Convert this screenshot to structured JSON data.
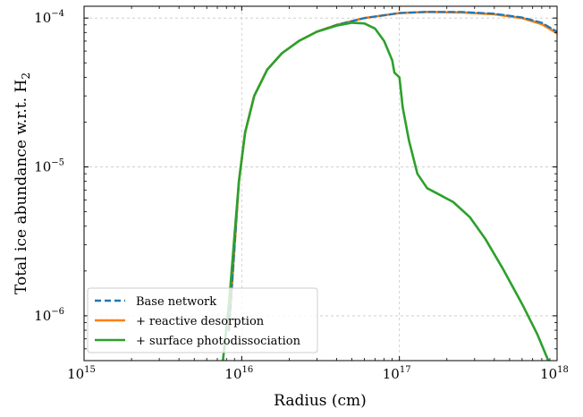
{
  "chart_data": {
    "type": "line",
    "title": "",
    "xlabel": "Radius (cm)",
    "ylabel": {
      "main": "Total ice abundance w.r.t. H",
      "subscript": "2"
    },
    "xscale": "log",
    "yscale": "log",
    "xlim": [
      1000000000000000.0,
      1e+18
    ],
    "ylim": [
      5e-07,
      0.00012
    ],
    "x_ticks": [
      {
        "value": 1000000000000000.0,
        "base": "10",
        "exp": "15"
      },
      {
        "value": 1e+16,
        "base": "10",
        "exp": "16"
      },
      {
        "value": 1e+17,
        "base": "10",
        "exp": "17"
      },
      {
        "value": 1e+18,
        "base": "10",
        "exp": "18"
      }
    ],
    "y_ticks": [
      {
        "value": 1e-06,
        "base": "10",
        "exp": "−6"
      },
      {
        "value": 1e-05,
        "base": "10",
        "exp": "−5"
      },
      {
        "value": 0.0001,
        "base": "10",
        "exp": "−4"
      }
    ],
    "grid": true,
    "legend_position": "bottom-left",
    "series": [
      {
        "name": "Base network",
        "color": "#1f77b4",
        "linestyle": "dashed",
        "points": [
          [
            8300000000000000.0,
            8e-07
          ],
          [
            8800000000000000.0,
            2e-06
          ],
          [
            9600000000000000.0,
            8e-06
          ],
          [
            1.05e+16,
            1.7e-05
          ],
          [
            1.2e+16,
            3e-05
          ],
          [
            1.45e+16,
            4.5e-05
          ],
          [
            1.8e+16,
            5.8e-05
          ],
          [
            2.3e+16,
            7e-05
          ],
          [
            3e+16,
            8.1e-05
          ],
          [
            4e+16,
            9e-05
          ],
          [
            6e+16,
            0.0001
          ],
          [
            1e+17,
            0.000108
          ],
          [
            1.5e+17,
            0.00011
          ],
          [
            2.5e+17,
            0.00011
          ],
          [
            4e+17,
            0.000107
          ],
          [
            6e+17,
            0.000101
          ],
          [
            8e+17,
            9.3e-05
          ],
          [
            1e+18,
            8.1e-05
          ]
        ]
      },
      {
        "name": "+ reactive desorption",
        "color": "#ff7f0e",
        "linestyle": "solid",
        "points": [
          [
            8300000000000000.0,
            8e-07
          ],
          [
            8800000000000000.0,
            2e-06
          ],
          [
            9600000000000000.0,
            8e-06
          ],
          [
            1.05e+16,
            1.7e-05
          ],
          [
            1.2e+16,
            3e-05
          ],
          [
            1.45e+16,
            4.5e-05
          ],
          [
            1.8e+16,
            5.8e-05
          ],
          [
            2.3e+16,
            7e-05
          ],
          [
            3e+16,
            8.1e-05
          ],
          [
            4e+16,
            9e-05
          ],
          [
            6e+16,
            0.0001
          ],
          [
            1e+17,
            0.000108
          ],
          [
            1.5e+17,
            0.00011
          ],
          [
            2.5e+17,
            0.000109
          ],
          [
            4e+17,
            0.000106
          ],
          [
            6e+17,
            0.0001
          ],
          [
            8e+17,
            9.1e-05
          ],
          [
            1e+18,
            7.9e-05
          ]
        ]
      },
      {
        "name": "+ surface photodissociation",
        "color": "#2ca02c",
        "linestyle": "solid",
        "points": [
          [
            7600000000000000.0,
            5e-07
          ],
          [
            8300000000000000.0,
            1.2e-06
          ],
          [
            9000000000000000.0,
            3.5e-06
          ],
          [
            9600000000000000.0,
            8e-06
          ],
          [
            1.05e+16,
            1.7e-05
          ],
          [
            1.2e+16,
            3e-05
          ],
          [
            1.45e+16,
            4.5e-05
          ],
          [
            1.8e+16,
            5.8e-05
          ],
          [
            2.3e+16,
            7e-05
          ],
          [
            3e+16,
            8.1e-05
          ],
          [
            4e+16,
            8.9e-05
          ],
          [
            5e+16,
            9.3e-05
          ],
          [
            6e+16,
            9.2e-05
          ],
          [
            7e+16,
            8.5e-05
          ],
          [
            8e+16,
            7e-05
          ],
          [
            9e+16,
            5.2e-05
          ],
          [
            9.3e+16,
            4.3e-05
          ],
          [
            1e+17,
            4e-05
          ],
          [
            1.05e+17,
            2.5e-05
          ],
          [
            1.15e+17,
            1.5e-05
          ],
          [
            1.3e+17,
            9e-06
          ],
          [
            1.5e+17,
            7.2e-06
          ],
          [
            1.8e+17,
            6.5e-06
          ],
          [
            2.2e+17,
            5.8e-06
          ],
          [
            2.8e+17,
            4.6e-06
          ],
          [
            3.5e+17,
            3.3e-06
          ],
          [
            4.5e+17,
            2.1e-06
          ],
          [
            6e+17,
            1.2e-06
          ],
          [
            7.5e+17,
            7.5e-07
          ],
          [
            8.8e+17,
            5e-07
          ]
        ]
      }
    ]
  }
}
